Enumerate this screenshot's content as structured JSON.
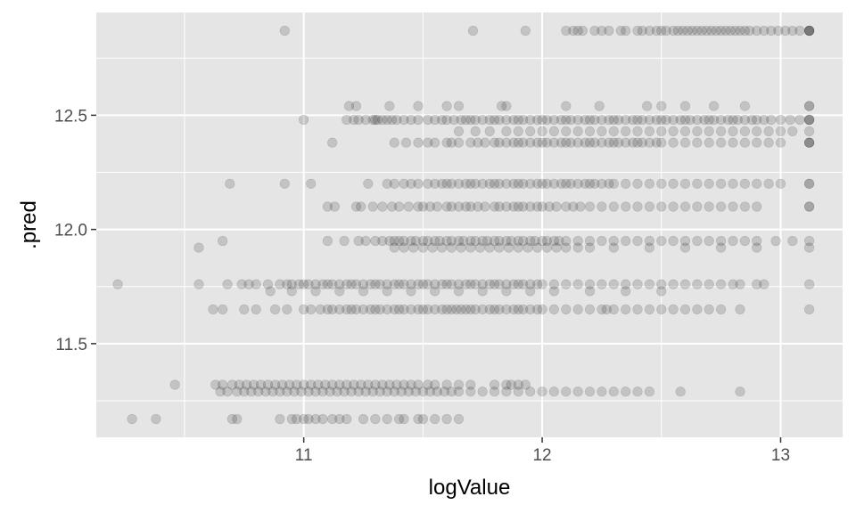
{
  "chart_data": {
    "type": "scatter",
    "title": "",
    "xlabel": "logValue",
    "ylabel": ".pred",
    "xlim": [
      10.13,
      13.26
    ],
    "ylim": [
      11.09,
      12.95
    ],
    "x_ticks": [
      11,
      12,
      13
    ],
    "x_tick_labels": [
      "11",
      "12",
      "13"
    ],
    "y_ticks": [
      11.5,
      12.0,
      12.5
    ],
    "y_tick_labels": [
      "11.5",
      "12.0",
      "12.5"
    ],
    "grid": true,
    "point_alpha": 0.15,
    "colors": {
      "panel": "#e5e5e5",
      "grid": "#ffffff",
      "point": "#000000",
      "tick_text": "#4d4d4d",
      "axis_title": "#000000"
    },
    "levels": [
      {
        "y": 12.87,
        "x": [
          10.92,
          11.71,
          11.93,
          12.1,
          12.13,
          12.15,
          12.17,
          12.22,
          12.25,
          12.28,
          12.33,
          12.35,
          12.4,
          12.42,
          12.45,
          12.48,
          12.5,
          12.52,
          12.55,
          12.57,
          12.59,
          12.61,
          12.63,
          12.65,
          12.67,
          12.69,
          12.71,
          12.73,
          12.75,
          12.77,
          12.79,
          12.81,
          12.83,
          12.85,
          12.87,
          12.9,
          12.93,
          12.96,
          12.99,
          13.02,
          13.05,
          13.08,
          13.12,
          13.12,
          13.12,
          13.12
        ]
      },
      {
        "y": 12.54,
        "x": [
          11.19,
          11.22,
          11.36,
          11.48,
          11.6,
          11.65,
          11.83,
          11.85,
          12.1,
          12.24,
          12.44,
          12.5,
          12.6,
          12.72,
          12.85,
          13.12,
          13.12
        ]
      },
      {
        "y": 12.48,
        "x": [
          11.0,
          11.18,
          11.21,
          11.23,
          11.26,
          11.29,
          11.3,
          11.31,
          11.33,
          11.35,
          11.37,
          11.39,
          11.42,
          11.45,
          11.48,
          11.52,
          11.55,
          11.58,
          11.6,
          11.63,
          11.66,
          11.68,
          11.7,
          11.72,
          11.75,
          11.78,
          11.8,
          11.82,
          11.85,
          11.88,
          11.9,
          11.92,
          11.95,
          11.98,
          12.0,
          12.02,
          12.05,
          12.08,
          12.1,
          12.12,
          12.15,
          12.18,
          12.2,
          12.22,
          12.25,
          12.28,
          12.3,
          12.32,
          12.35,
          12.38,
          12.4,
          12.42,
          12.45,
          12.48,
          12.5,
          12.52,
          12.55,
          12.58,
          12.6,
          12.62,
          12.65,
          12.68,
          12.7,
          12.72,
          12.75,
          12.78,
          12.8,
          12.82,
          12.85,
          12.88,
          12.9,
          12.93,
          12.96,
          13.0,
          13.04,
          13.08,
          13.12,
          13.12,
          13.12
        ]
      },
      {
        "y": 12.43,
        "x": [
          11.65,
          11.72,
          11.78,
          11.85,
          11.9,
          11.95,
          12.0,
          12.05,
          12.1,
          12.15,
          12.2,
          12.25,
          12.3,
          12.35,
          12.4,
          12.45,
          12.5,
          12.55,
          12.6,
          12.65,
          12.7,
          12.75,
          12.8,
          12.85,
          12.9,
          12.95,
          13.0,
          13.05,
          13.12
        ]
      },
      {
        "y": 12.38,
        "x": [
          11.12,
          11.38,
          11.43,
          11.48,
          11.52,
          11.55,
          11.6,
          11.62,
          11.65,
          11.7,
          11.73,
          11.76,
          11.8,
          11.82,
          11.85,
          11.88,
          11.9,
          11.92,
          11.95,
          11.98,
          12.0,
          12.02,
          12.05,
          12.08,
          12.1,
          12.12,
          12.15,
          12.18,
          12.2,
          12.22,
          12.25,
          12.28,
          12.3,
          12.32,
          12.35,
          12.38,
          12.4,
          12.42,
          12.45,
          12.48,
          12.5,
          12.55,
          12.6,
          12.65,
          12.7,
          12.75,
          12.8,
          12.85,
          12.9,
          12.95,
          13.0,
          13.12,
          13.12,
          13.12
        ]
      },
      {
        "y": 12.2,
        "x": [
          10.69,
          10.92,
          11.03,
          11.27,
          11.35,
          11.38,
          11.42,
          11.45,
          11.48,
          11.52,
          11.55,
          11.58,
          11.6,
          11.62,
          11.65,
          11.68,
          11.7,
          11.72,
          11.75,
          11.78,
          11.8,
          11.82,
          11.85,
          11.88,
          11.9,
          11.92,
          11.95,
          11.98,
          12.0,
          12.02,
          12.05,
          12.08,
          12.1,
          12.12,
          12.15,
          12.18,
          12.2,
          12.22,
          12.25,
          12.28,
          12.3,
          12.35,
          12.4,
          12.45,
          12.5,
          12.55,
          12.6,
          12.65,
          12.7,
          12.75,
          12.8,
          12.85,
          12.9,
          12.95,
          13.0,
          13.12,
          13.12
        ]
      },
      {
        "y": 12.1,
        "x": [
          11.1,
          11.13,
          11.22,
          11.24,
          11.29,
          11.33,
          11.37,
          11.4,
          11.44,
          11.48,
          11.5,
          11.53,
          11.56,
          11.6,
          11.62,
          11.65,
          11.68,
          11.7,
          11.73,
          11.76,
          11.8,
          11.82,
          11.85,
          11.88,
          11.9,
          11.92,
          11.95,
          11.98,
          12.0,
          12.03,
          12.06,
          12.1,
          12.13,
          12.16,
          12.2,
          12.25,
          12.3,
          12.35,
          12.4,
          12.45,
          12.5,
          12.55,
          12.6,
          12.65,
          12.7,
          12.75,
          12.8,
          12.85,
          12.9,
          13.12,
          13.12
        ]
      },
      {
        "y": 11.95,
        "x": [
          10.66,
          11.1,
          11.17,
          11.23,
          11.26,
          11.3,
          11.33,
          11.36,
          11.38,
          11.4,
          11.42,
          11.45,
          11.47,
          11.5,
          11.52,
          11.55,
          11.57,
          11.6,
          11.62,
          11.65,
          11.67,
          11.7,
          11.72,
          11.75,
          11.77,
          11.8,
          11.82,
          11.85,
          11.87,
          11.9,
          11.92,
          11.95,
          11.97,
          12.0,
          12.02,
          12.05,
          12.07,
          12.1,
          12.15,
          12.2,
          12.25,
          12.3,
          12.35,
          12.4,
          12.45,
          12.5,
          12.55,
          12.6,
          12.65,
          12.7,
          12.75,
          12.8,
          12.85,
          12.9,
          12.98,
          13.05,
          13.12
        ]
      },
      {
        "y": 11.92,
        "x": [
          10.56,
          11.38,
          11.42,
          11.46,
          11.5,
          11.54,
          11.58,
          11.62,
          11.66,
          11.7,
          11.74,
          11.78,
          11.82,
          11.86,
          11.9,
          11.94,
          11.98,
          12.02,
          12.06,
          12.1,
          12.15,
          12.2,
          12.3,
          12.45,
          12.6,
          12.75,
          12.9,
          13.12
        ]
      },
      {
        "y": 11.76,
        "x": [
          10.22,
          10.56,
          10.68,
          10.74,
          10.77,
          10.8,
          10.85,
          10.9,
          10.93,
          10.95,
          10.98,
          11.0,
          11.02,
          11.05,
          11.08,
          11.1,
          11.12,
          11.15,
          11.18,
          11.2,
          11.22,
          11.25,
          11.28,
          11.3,
          11.32,
          11.35,
          11.38,
          11.4,
          11.42,
          11.45,
          11.48,
          11.5,
          11.52,
          11.55,
          11.58,
          11.6,
          11.62,
          11.65,
          11.68,
          11.7,
          11.72,
          11.75,
          11.78,
          11.8,
          11.82,
          11.85,
          11.88,
          11.9,
          11.92,
          11.95,
          11.98,
          12.0,
          12.05,
          12.1,
          12.15,
          12.2,
          12.25,
          12.3,
          12.35,
          12.4,
          12.45,
          12.5,
          12.55,
          12.6,
          12.65,
          12.7,
          12.75,
          12.8,
          12.83,
          12.9,
          12.93,
          13.12
        ]
      },
      {
        "y": 11.73,
        "x": [
          10.86,
          10.95,
          11.05,
          11.15,
          11.25,
          11.35,
          11.45,
          11.55,
          11.65,
          11.75,
          11.85,
          11.95,
          12.05,
          12.2,
          12.35,
          12.5
        ]
      },
      {
        "y": 11.65,
        "x": [
          10.62,
          10.66,
          10.75,
          10.8,
          10.88,
          10.93,
          11.0,
          11.03,
          11.07,
          11.1,
          11.12,
          11.15,
          11.18,
          11.2,
          11.22,
          11.25,
          11.28,
          11.3,
          11.32,
          11.35,
          11.38,
          11.4,
          11.42,
          11.45,
          11.48,
          11.5,
          11.52,
          11.55,
          11.58,
          11.6,
          11.62,
          11.64,
          11.66,
          11.68,
          11.7,
          11.72,
          11.75,
          11.78,
          11.8,
          11.82,
          11.85,
          11.88,
          11.9,
          11.92,
          11.95,
          11.98,
          12.0,
          12.05,
          12.1,
          12.15,
          12.2,
          12.25,
          12.27,
          12.3,
          12.35,
          12.4,
          12.45,
          12.5,
          12.55,
          12.6,
          12.65,
          12.7,
          12.75,
          12.83,
          13.12
        ]
      },
      {
        "y": 11.32,
        "x": [
          10.46,
          10.63,
          10.66,
          10.7,
          10.73,
          10.76,
          10.79,
          10.82,
          10.85,
          10.88,
          10.91,
          10.94,
          10.97,
          11.0,
          11.03,
          11.06,
          11.09,
          11.12,
          11.15,
          11.18,
          11.21,
          11.24,
          11.27,
          11.3,
          11.33,
          11.36,
          11.39,
          11.42,
          11.45,
          11.48,
          11.52,
          11.55,
          11.6,
          11.65,
          11.7,
          11.8,
          11.85,
          11.87,
          11.9,
          11.93
        ]
      },
      {
        "y": 11.29,
        "x": [
          10.65,
          10.68,
          10.72,
          10.75,
          10.78,
          10.81,
          10.84,
          10.87,
          10.9,
          10.93,
          10.96,
          10.99,
          11.02,
          11.05,
          11.08,
          11.11,
          11.14,
          11.17,
          11.2,
          11.23,
          11.26,
          11.29,
          11.32,
          11.35,
          11.38,
          11.41,
          11.44,
          11.47,
          11.5,
          11.53,
          11.56,
          11.59,
          11.62,
          11.65,
          11.7,
          11.75,
          11.8,
          11.85,
          11.9,
          11.95,
          12.0,
          12.05,
          12.1,
          12.15,
          12.2,
          12.25,
          12.3,
          12.35,
          12.4,
          12.45,
          12.58,
          12.83
        ]
      },
      {
        "y": 11.17,
        "x": [
          10.28,
          10.38,
          10.7,
          10.72,
          10.9,
          10.95,
          10.97,
          11.0,
          11.02,
          11.05,
          11.08,
          11.12,
          11.15,
          11.18,
          11.25,
          11.3,
          11.35,
          11.4,
          11.42,
          11.48,
          11.5,
          11.55,
          11.6,
          11.65
        ]
      }
    ]
  }
}
